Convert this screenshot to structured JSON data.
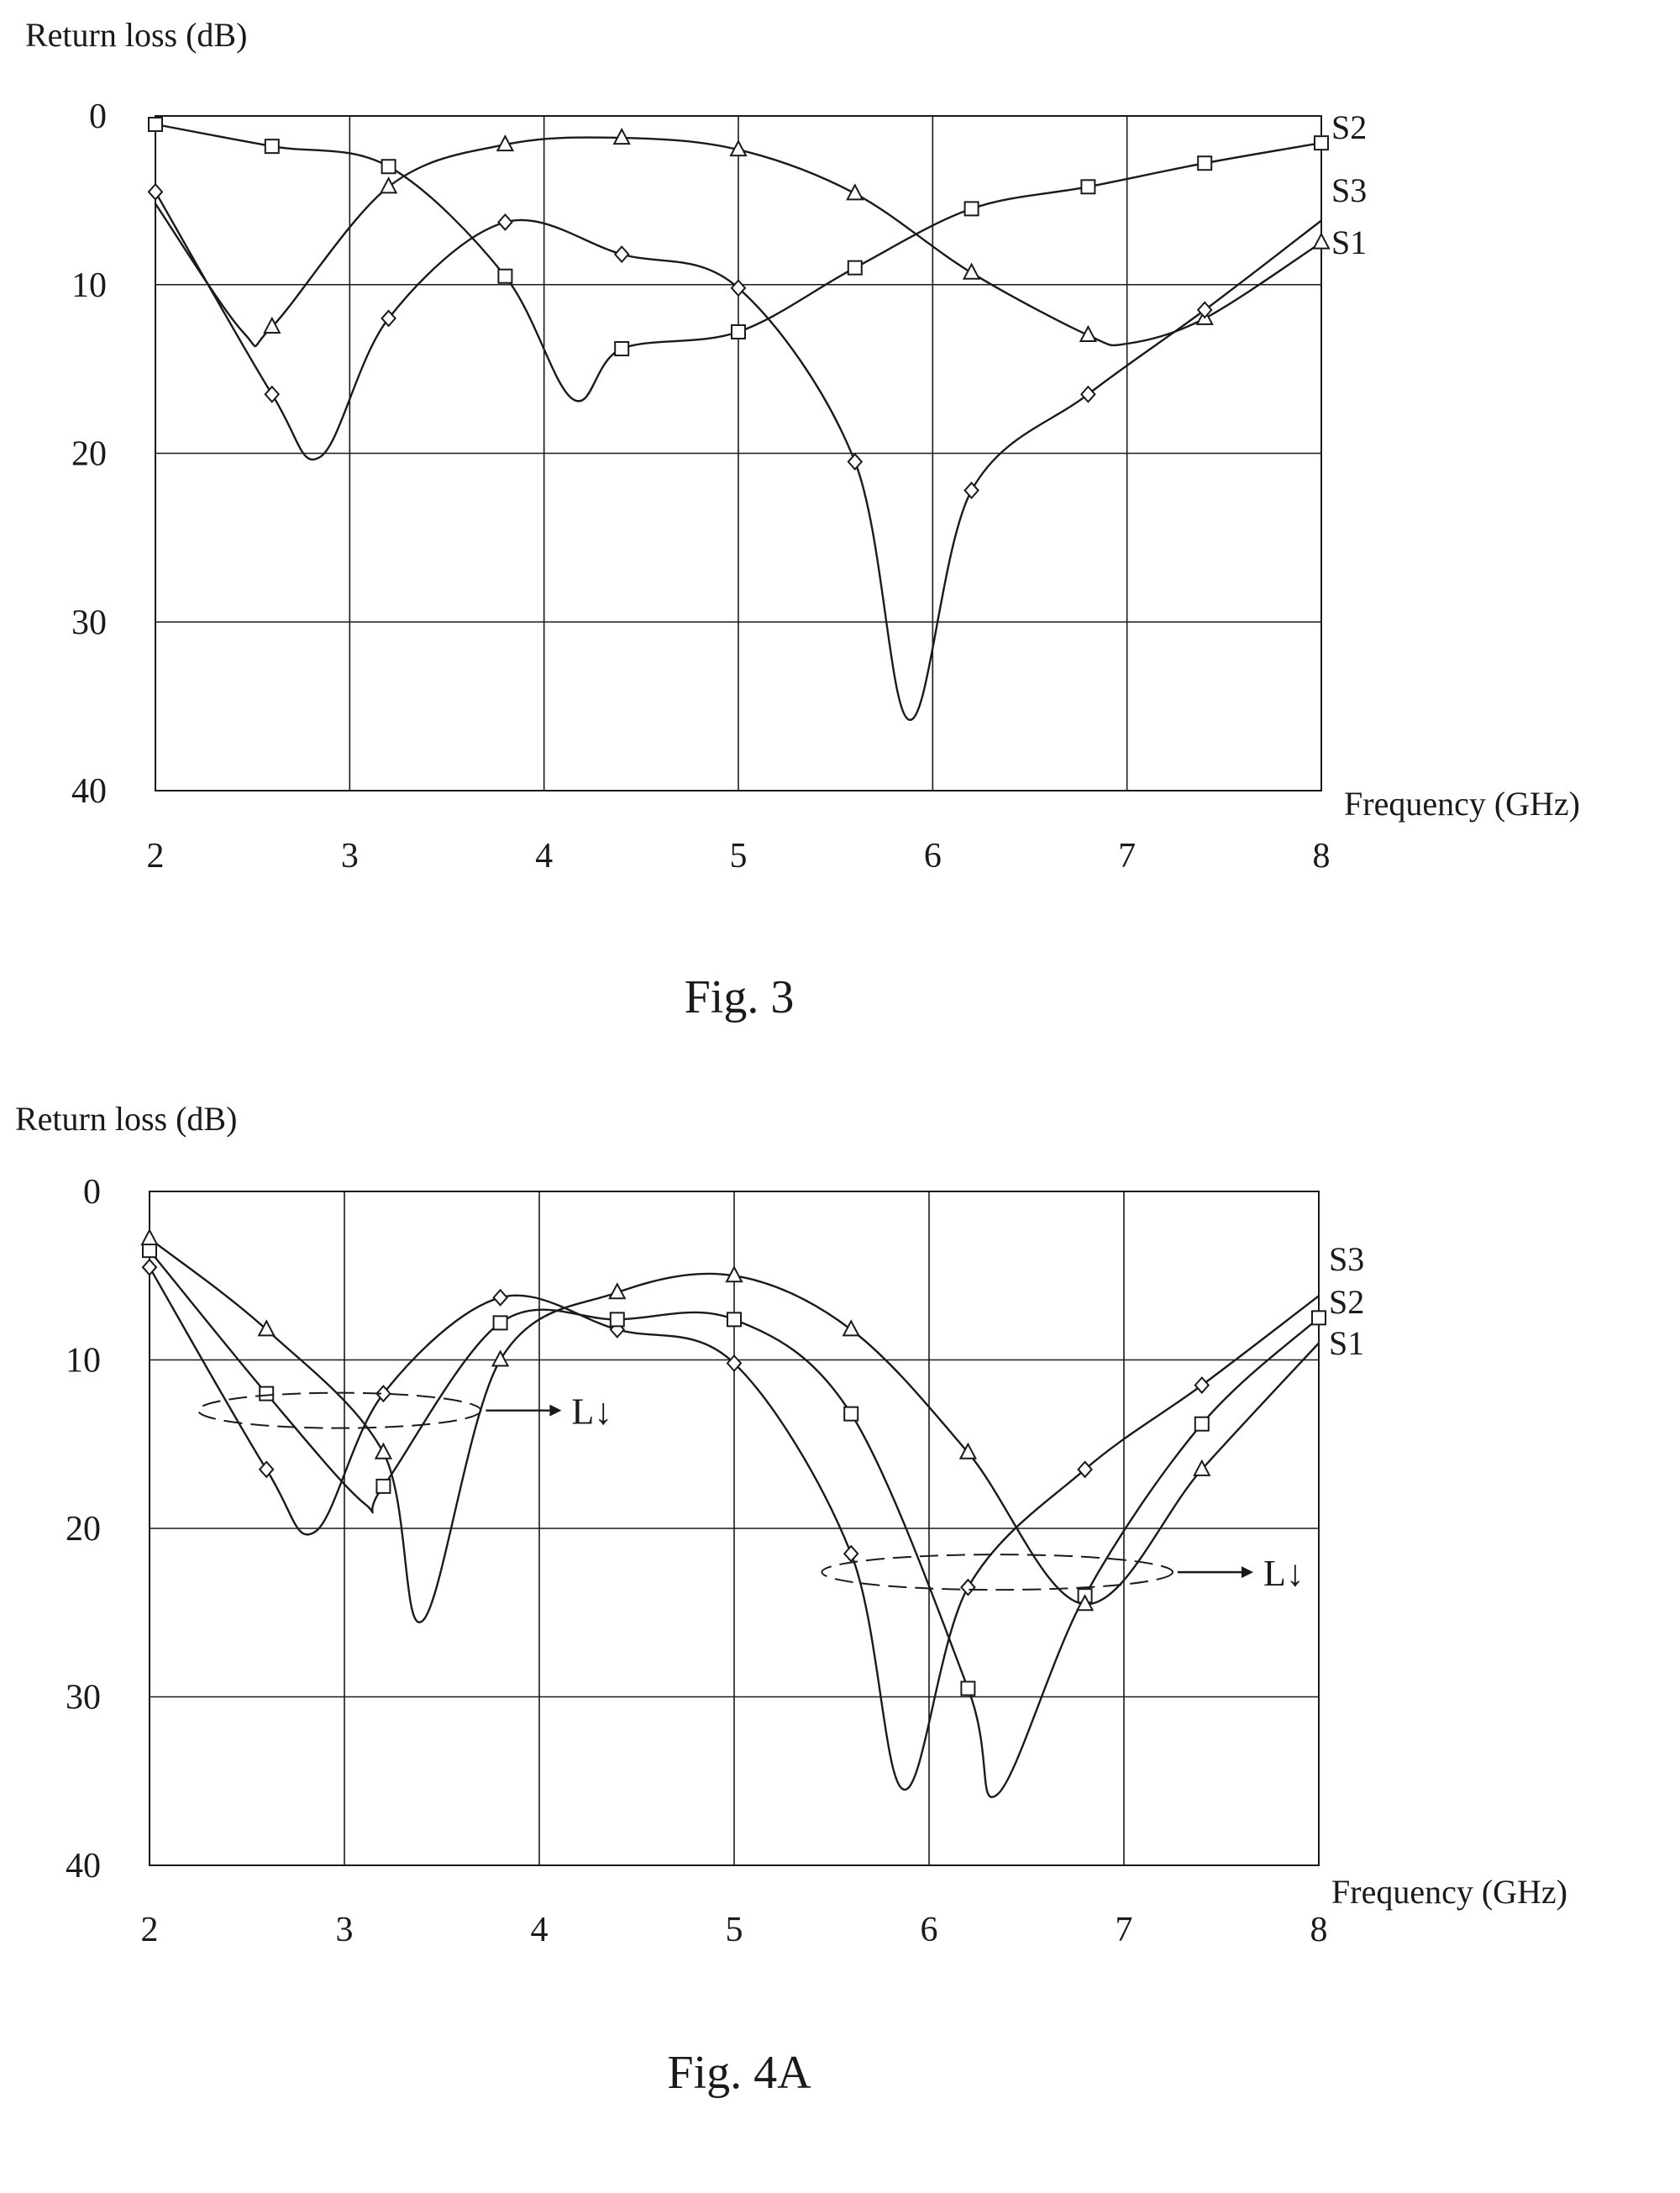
{
  "chart_data": [
    {
      "type": "line",
      "title": "",
      "caption": "Fig. 3",
      "ylabel": "Return loss (dB)",
      "xlabel": "Frequency (GHz)",
      "xlim": [
        2,
        8
      ],
      "ylim": [
        0,
        40
      ],
      "y_inverted": true,
      "x_ticks": [
        "2",
        "3",
        "4",
        "5",
        "6",
        "7",
        "8"
      ],
      "y_ticks": [
        "0",
        "10",
        "20",
        "30",
        "40"
      ],
      "grid": true,
      "legend_placement": "right, at curve ends",
      "series": [
        {
          "name": "S2",
          "marker": "square",
          "x": [
            2.0,
            2.6,
            3.2,
            3.8,
            4.15,
            4.4,
            5.0,
            5.6,
            6.2,
            6.8,
            7.4,
            8.0
          ],
          "y": [
            0.5,
            1.8,
            3.0,
            9.5,
            16.8,
            13.8,
            12.8,
            9.0,
            5.5,
            4.2,
            2.8,
            1.6
          ],
          "marker_x": [
            2.0,
            2.6,
            3.2,
            3.8,
            4.4,
            5.0,
            5.6,
            6.2,
            6.8,
            7.4,
            8.0
          ]
        },
        {
          "name": "S3",
          "marker": "triangle",
          "x": [
            2.0,
            2.45,
            2.6,
            3.2,
            3.8,
            4.4,
            5.0,
            5.6,
            6.2,
            6.8,
            7.0,
            7.4,
            8.0
          ],
          "y": [
            5.2,
            12.8,
            12.5,
            4.2,
            1.7,
            1.3,
            2.0,
            4.6,
            9.3,
            13.0,
            13.5,
            12.0,
            7.5
          ],
          "marker_x": [
            2.6,
            3.2,
            3.8,
            4.4,
            5.0,
            5.6,
            6.2,
            6.8,
            7.4,
            8.0
          ]
        },
        {
          "name": "S1",
          "marker": "diamond",
          "x": [
            2.0,
            2.6,
            2.85,
            3.2,
            3.8,
            4.4,
            5.0,
            5.6,
            5.88,
            6.2,
            6.8,
            7.4,
            8.0
          ],
          "y": [
            4.5,
            16.5,
            20.2,
            12.0,
            6.3,
            8.2,
            10.2,
            20.5,
            35.8,
            22.2,
            16.5,
            11.5,
            6.2
          ],
          "marker_x": [
            2.0,
            2.6,
            3.2,
            3.8,
            4.4,
            5.0,
            5.6,
            6.2,
            6.8,
            7.4
          ]
        }
      ],
      "annotations": []
    },
    {
      "type": "line",
      "title": "",
      "caption": "Fig. 4A",
      "ylabel": "Return loss (dB)",
      "xlabel": "Frequency (GHz)",
      "xlim": [
        2,
        8
      ],
      "ylim": [
        0,
        40
      ],
      "y_inverted": true,
      "x_ticks": [
        "2",
        "3",
        "4",
        "5",
        "6",
        "7",
        "8"
      ],
      "y_ticks": [
        "0",
        "10",
        "20",
        "30",
        "40"
      ],
      "grid": true,
      "legend_placement": "right, at curve ends",
      "series": [
        {
          "name": "S3",
          "marker": "diamond",
          "x": [
            2.0,
            2.6,
            2.85,
            3.2,
            3.8,
            4.4,
            5.0,
            5.6,
            5.87,
            6.2,
            6.8,
            7.4,
            8.0
          ],
          "y": [
            4.5,
            16.5,
            20.2,
            12.0,
            6.3,
            8.2,
            10.2,
            21.5,
            35.5,
            23.5,
            16.5,
            11.5,
            6.2
          ],
          "marker_x": [
            2.0,
            2.6,
            3.2,
            3.8,
            4.4,
            5.0,
            5.6,
            6.2,
            6.8,
            7.4
          ]
        },
        {
          "name": "S2",
          "marker": "square",
          "x": [
            2.0,
            2.6,
            3.1,
            3.2,
            3.8,
            4.4,
            5.0,
            5.6,
            6.2,
            6.35,
            6.8,
            7.4,
            8.0
          ],
          "y": [
            3.5,
            12.0,
            18.5,
            17.5,
            7.8,
            7.6,
            7.6,
            13.2,
            29.5,
            35.8,
            24.0,
            13.8,
            7.5
          ],
          "marker_x": [
            2.0,
            2.6,
            3.2,
            3.8,
            4.4,
            5.0,
            5.6,
            6.2,
            6.8,
            7.4,
            8.0
          ]
        },
        {
          "name": "S1",
          "marker": "triangle",
          "x": [
            2.0,
            2.6,
            3.2,
            3.4,
            3.8,
            4.4,
            5.0,
            5.6,
            6.2,
            6.8,
            7.4,
            8.0
          ],
          "y": [
            2.8,
            8.2,
            15.5,
            25.5,
            10.0,
            6.0,
            5.0,
            8.2,
            15.5,
            24.5,
            16.5,
            9.0
          ],
          "marker_x": [
            2.0,
            2.6,
            3.2,
            3.8,
            4.4,
            5.0,
            5.6,
            6.2,
            6.8,
            7.4
          ]
        }
      ],
      "annotations": [
        {
          "text": "L↓",
          "group_x": [
            2.25,
            3.7
          ],
          "y": 13.0
        },
        {
          "text": "L↓",
          "group_x": [
            5.45,
            7.25
          ],
          "y": 22.6
        }
      ]
    }
  ]
}
